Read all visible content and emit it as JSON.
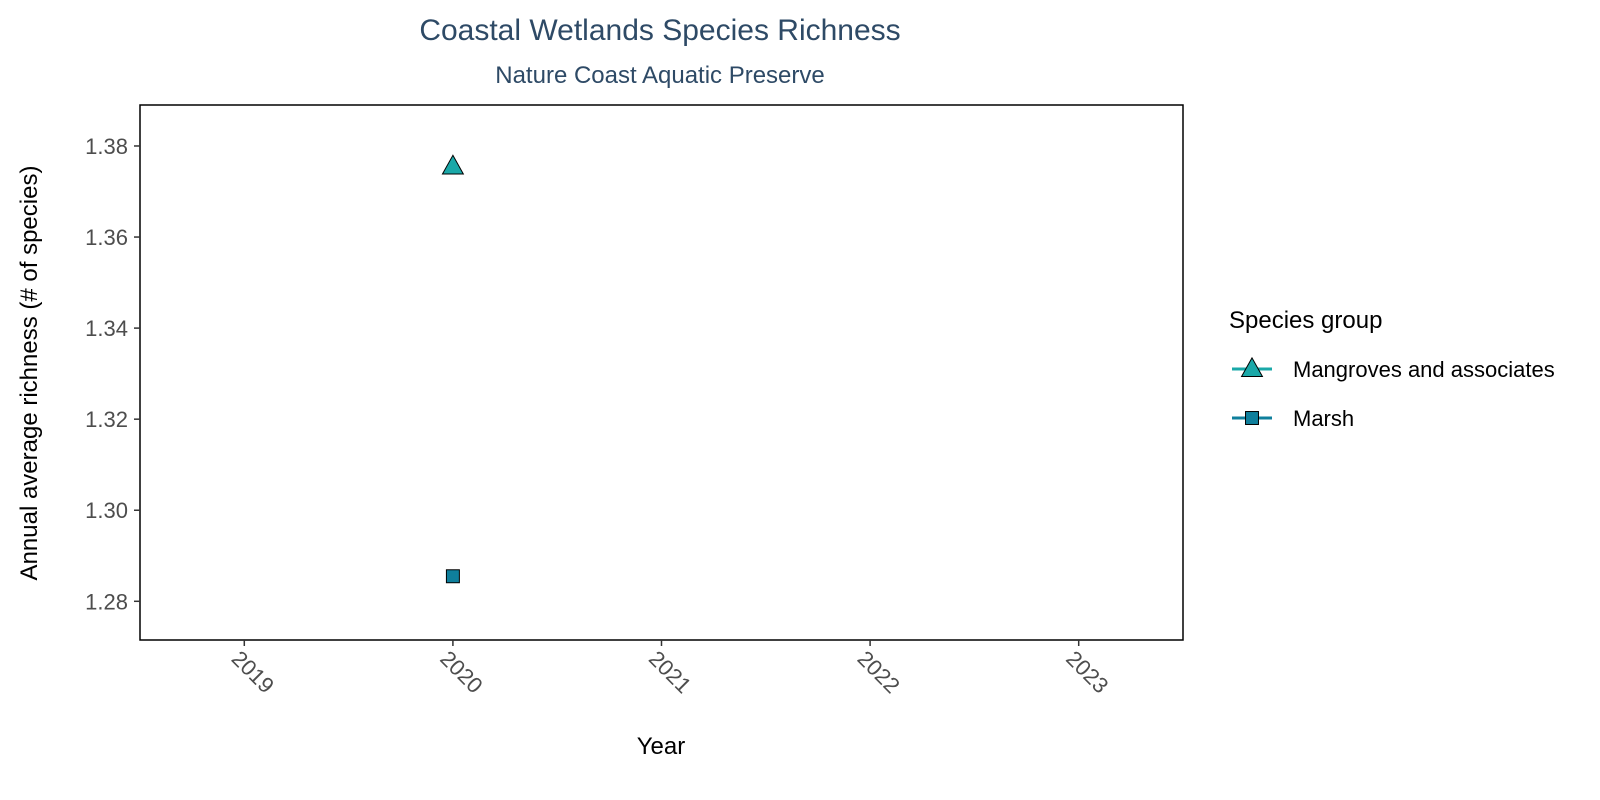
{
  "chart_data": {
    "type": "scatter",
    "title": "Coastal Wetlands Species Richness",
    "subtitle": "Nature Coast Aquatic Preserve",
    "xlabel": "Year",
    "ylabel": "Annual average richness (# of species)",
    "x_ticks": [
      "2019",
      "2020",
      "2021",
      "2022",
      "2023"
    ],
    "y_ticks": [
      "1.28",
      "1.30",
      "1.32",
      "1.34",
      "1.36",
      "1.38"
    ],
    "xlim": [
      2018.5,
      2023.5
    ],
    "ylim": [
      1.2715,
      1.389
    ],
    "grid": false,
    "legend": {
      "title": "Species group",
      "placement": "right"
    },
    "series": [
      {
        "name": "Mangroves and associates",
        "marker": "triangle",
        "color": "#1aa8a8",
        "points": [
          {
            "x": 2020,
            "y": 1.3755
          }
        ]
      },
      {
        "name": "Marsh",
        "marker": "square",
        "color": "#0f7f9c",
        "points": [
          {
            "x": 2020,
            "y": 1.2855
          }
        ]
      }
    ]
  }
}
